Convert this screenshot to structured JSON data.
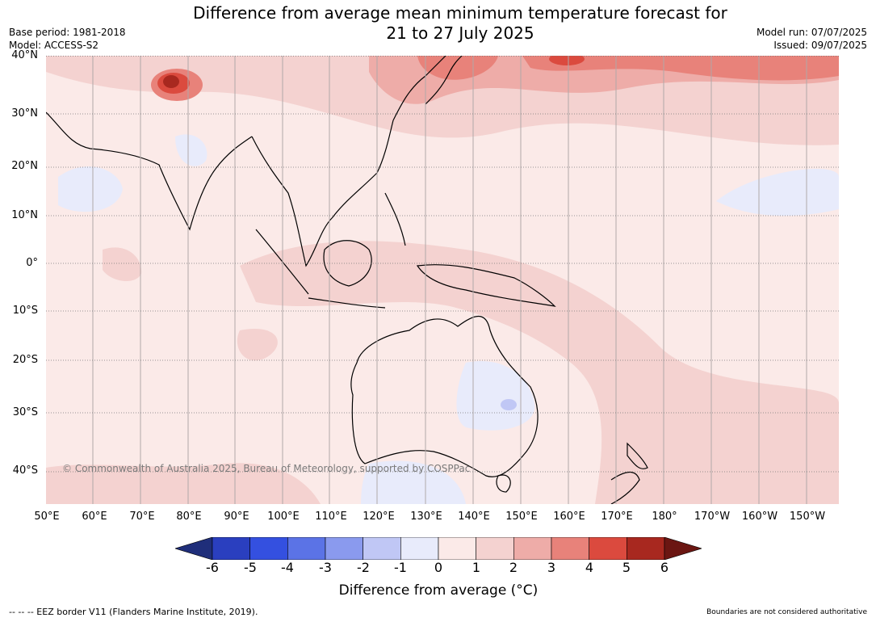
{
  "title": {
    "line1": "Difference from average mean minimum temperature forecast for",
    "line2": "21 to 27 July 2025"
  },
  "meta": {
    "base_period": "Base period: 1981-2018",
    "model": "Model: ACCESS-S2",
    "model_run": "Model run: 07/07/2025",
    "issued": "Issued: 09/07/2025"
  },
  "map": {
    "lat_labels": [
      "40°N",
      "30°N",
      "20°N",
      "10°N",
      "0°",
      "10°S",
      "20°S",
      "30°S",
      "40°S"
    ],
    "lon_labels": [
      "50°E",
      "60°E",
      "70°E",
      "80°E",
      "90°E",
      "100°E",
      "110°E",
      "120°E",
      "130°E",
      "140°E",
      "150°E",
      "160°E",
      "170°E",
      "180°",
      "170°W",
      "160°W",
      "150°W"
    ],
    "copyright": "© Commonwealth of Australia 2025, Bureau of Meteorology, supported by COSPPac"
  },
  "colorbar": {
    "ticks": [
      "-6",
      "-5",
      "-4",
      "-3",
      "-2",
      "-1",
      "0",
      "1",
      "2",
      "3",
      "4",
      "5",
      "6"
    ],
    "colors": [
      "#1f2e7a",
      "#2a3fbf",
      "#3450e0",
      "#5b73e6",
      "#8a9aee",
      "#c0c7f5",
      "#e8ebfb",
      "#fbeae8",
      "#f4d2d0",
      "#eeaca8",
      "#e8827a",
      "#db4a3e",
      "#a8281f",
      "#6b1612"
    ],
    "label": "Difference from average (°C)"
  },
  "footer": {
    "left": "--  --  -- EEZ border V11 (Flanders Marine Institute, 2019).",
    "right": "Boundaries are not considered authoritative"
  }
}
